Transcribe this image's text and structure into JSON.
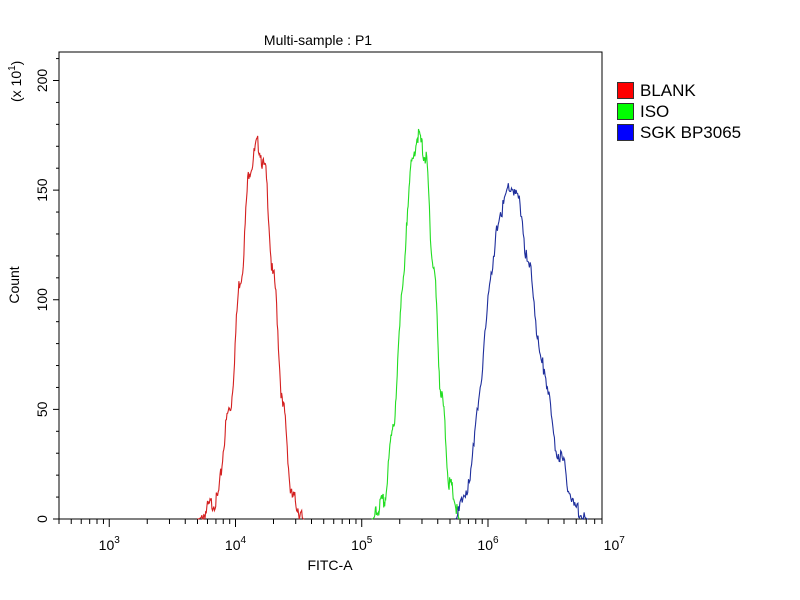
{
  "chart_data": {
    "type": "line",
    "title": "Multi-sample : P1",
    "xlabel": "FITC-A",
    "ylabel": "Count",
    "y_multiplier": "(x 10",
    "y_multiplier_exp": "1",
    "x_scale": "log",
    "xlim": [
      400,
      8000000
    ],
    "ylim": [
      0,
      213
    ],
    "x_ticks": [
      {
        "base": "10",
        "exp": "3",
        "value": 1000
      },
      {
        "base": "10",
        "exp": "4",
        "value": 10000
      },
      {
        "base": "10",
        "exp": "5",
        "value": 100000
      },
      {
        "base": "10",
        "exp": "6",
        "value": 1000000
      },
      {
        "base": "10",
        "exp": "7",
        "value": 10000000
      }
    ],
    "y_ticks": [
      {
        "label": "0",
        "value": 0
      },
      {
        "label": "50",
        "value": 50
      },
      {
        "label": "100",
        "value": 100
      },
      {
        "label": "150",
        "value": 150
      },
      {
        "label": "200",
        "value": 200
      }
    ],
    "grid": false,
    "legend_position": "right",
    "series": [
      {
        "name": "BLANK",
        "color": "#d42020",
        "swatch": "#ff0000",
        "x": [
          5000,
          7000,
          9000,
          11000,
          13000,
          15000,
          17000,
          20000,
          24000,
          28000,
          35000
        ],
        "y": [
          0,
          8,
          50,
          110,
          160,
          171,
          160,
          110,
          50,
          10,
          0
        ]
      },
      {
        "name": "ISO",
        "color": "#22dd22",
        "swatch": "#00ff00",
        "x": [
          120000,
          150000,
          180000,
          210000,
          245000,
          280000,
          320000,
          370000,
          430000,
          500000,
          600000
        ],
        "y": [
          0,
          8,
          45,
          105,
          160,
          175,
          165,
          115,
          55,
          15,
          0
        ]
      },
      {
        "name": "SGK BP3065",
        "color": "#1f2f9c",
        "swatch": "#0000ff",
        "x": [
          550000,
          700000,
          850000,
          1050000,
          1250000,
          1500000,
          1750000,
          2100000,
          2700000,
          3600000,
          5000000,
          6200000
        ],
        "y": [
          0,
          15,
          55,
          110,
          140,
          152,
          145,
          115,
          70,
          30,
          5,
          0
        ]
      }
    ]
  }
}
